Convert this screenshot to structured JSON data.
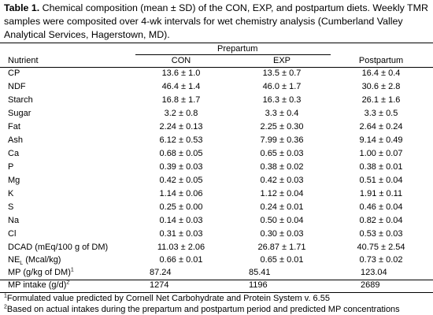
{
  "caption": {
    "label": "Table 1.",
    "text": " Chemical composition (mean ± SD) of the CON, EXP, and postpartum diets. Weekly TMR samples were composited over 4-wk intervals for wet chemistry analysis (Cumberland Valley Analytical Services, Hagerstown, MD)."
  },
  "header": {
    "group": "Prepartum",
    "nutrient": "Nutrient",
    "con": "CON",
    "exp": "EXP",
    "post": "Postpartum"
  },
  "rows": [
    {
      "n": "CP",
      "con": "13.6 ± 1.0",
      "exp": "13.5 ± 0.7",
      "post": "16.4 ± 0.4"
    },
    {
      "n": "NDF",
      "con": "46.4 ± 1.4",
      "exp": "46.0 ± 1.7",
      "post": "30.6 ± 2.8"
    },
    {
      "n": "Starch",
      "con": "16.8 ± 1.7",
      "exp": "16.3 ± 0.3",
      "post": "26.1 ± 1.6"
    },
    {
      "n": "Sugar",
      "con": "3.2 ± 0.8",
      "exp": "3.3 ± 0.4",
      "post": "3.3 ± 0.5"
    },
    {
      "n": "Fat",
      "con": "2.24 ± 0.13",
      "exp": "2.25 ± 0.30",
      "post": "2.64 ± 0.24"
    },
    {
      "n": "Ash",
      "con": "6.12 ± 0.53",
      "exp": "7.99 ± 0.36",
      "post": "9.14 ± 0.49"
    },
    {
      "n": "Ca",
      "con": "0.68 ± 0.05",
      "exp": "0.65 ± 0.03",
      "post": "1.00 ± 0.07"
    },
    {
      "n": "P",
      "con": "0.39 ± 0.03",
      "exp": "0.38 ± 0.02",
      "post": "0.38 ± 0.01"
    },
    {
      "n": "Mg",
      "con": "0.42 ± 0.05",
      "exp": "0.42 ± 0.03",
      "post": "0.51 ± 0.04"
    },
    {
      "n": "K",
      "con": "1.14 ± 0.06",
      "exp": "1.12 ± 0.04",
      "post": "1.91 ± 0.11"
    },
    {
      "n": "S",
      "con": "0.25 ± 0.00",
      "exp": "0.24 ± 0.01",
      "post": "0.46 ± 0.04"
    },
    {
      "n": "Na",
      "con": "0.14 ± 0.03",
      "exp": "0.50 ± 0.04",
      "post": "0.82 ± 0.04"
    },
    {
      "n": "Cl",
      "con": "0.31 ± 0.03",
      "exp": "0.30 ± 0.03",
      "post": "0.53 ± 0.03"
    },
    {
      "n": "DCAD (mEq/100 g of DM)",
      "con": "11.03 ± 2.06",
      "exp": "26.87 ± 1.71",
      "post": "40.75 ± 2.54"
    }
  ],
  "nel": {
    "pre": "NE",
    "sub": "L",
    "post": " (Mcal/kg)",
    "con": "0.66 ± 0.01",
    "exp": "0.65 ± 0.01",
    "postv": "0.73 ± 0.02"
  },
  "mp": {
    "label": "MP (g/kg of DM)",
    "sup": "1",
    "con": "87.24",
    "exp": "85.41",
    "post": "123.04"
  },
  "mpi": {
    "label": "MP intake (g/d)",
    "sup": "2",
    "con": "1274",
    "exp": "1196",
    "post": "2689"
  },
  "footnotes": [
    {
      "sup": "1",
      "text": "Formulated value predicted by Cornell Net Carbohydrate and Protein System v. 6.55"
    },
    {
      "sup": "2",
      "text": "Based on actual intakes during the prepartum and postpartum period and predicted MP concentrations"
    }
  ]
}
